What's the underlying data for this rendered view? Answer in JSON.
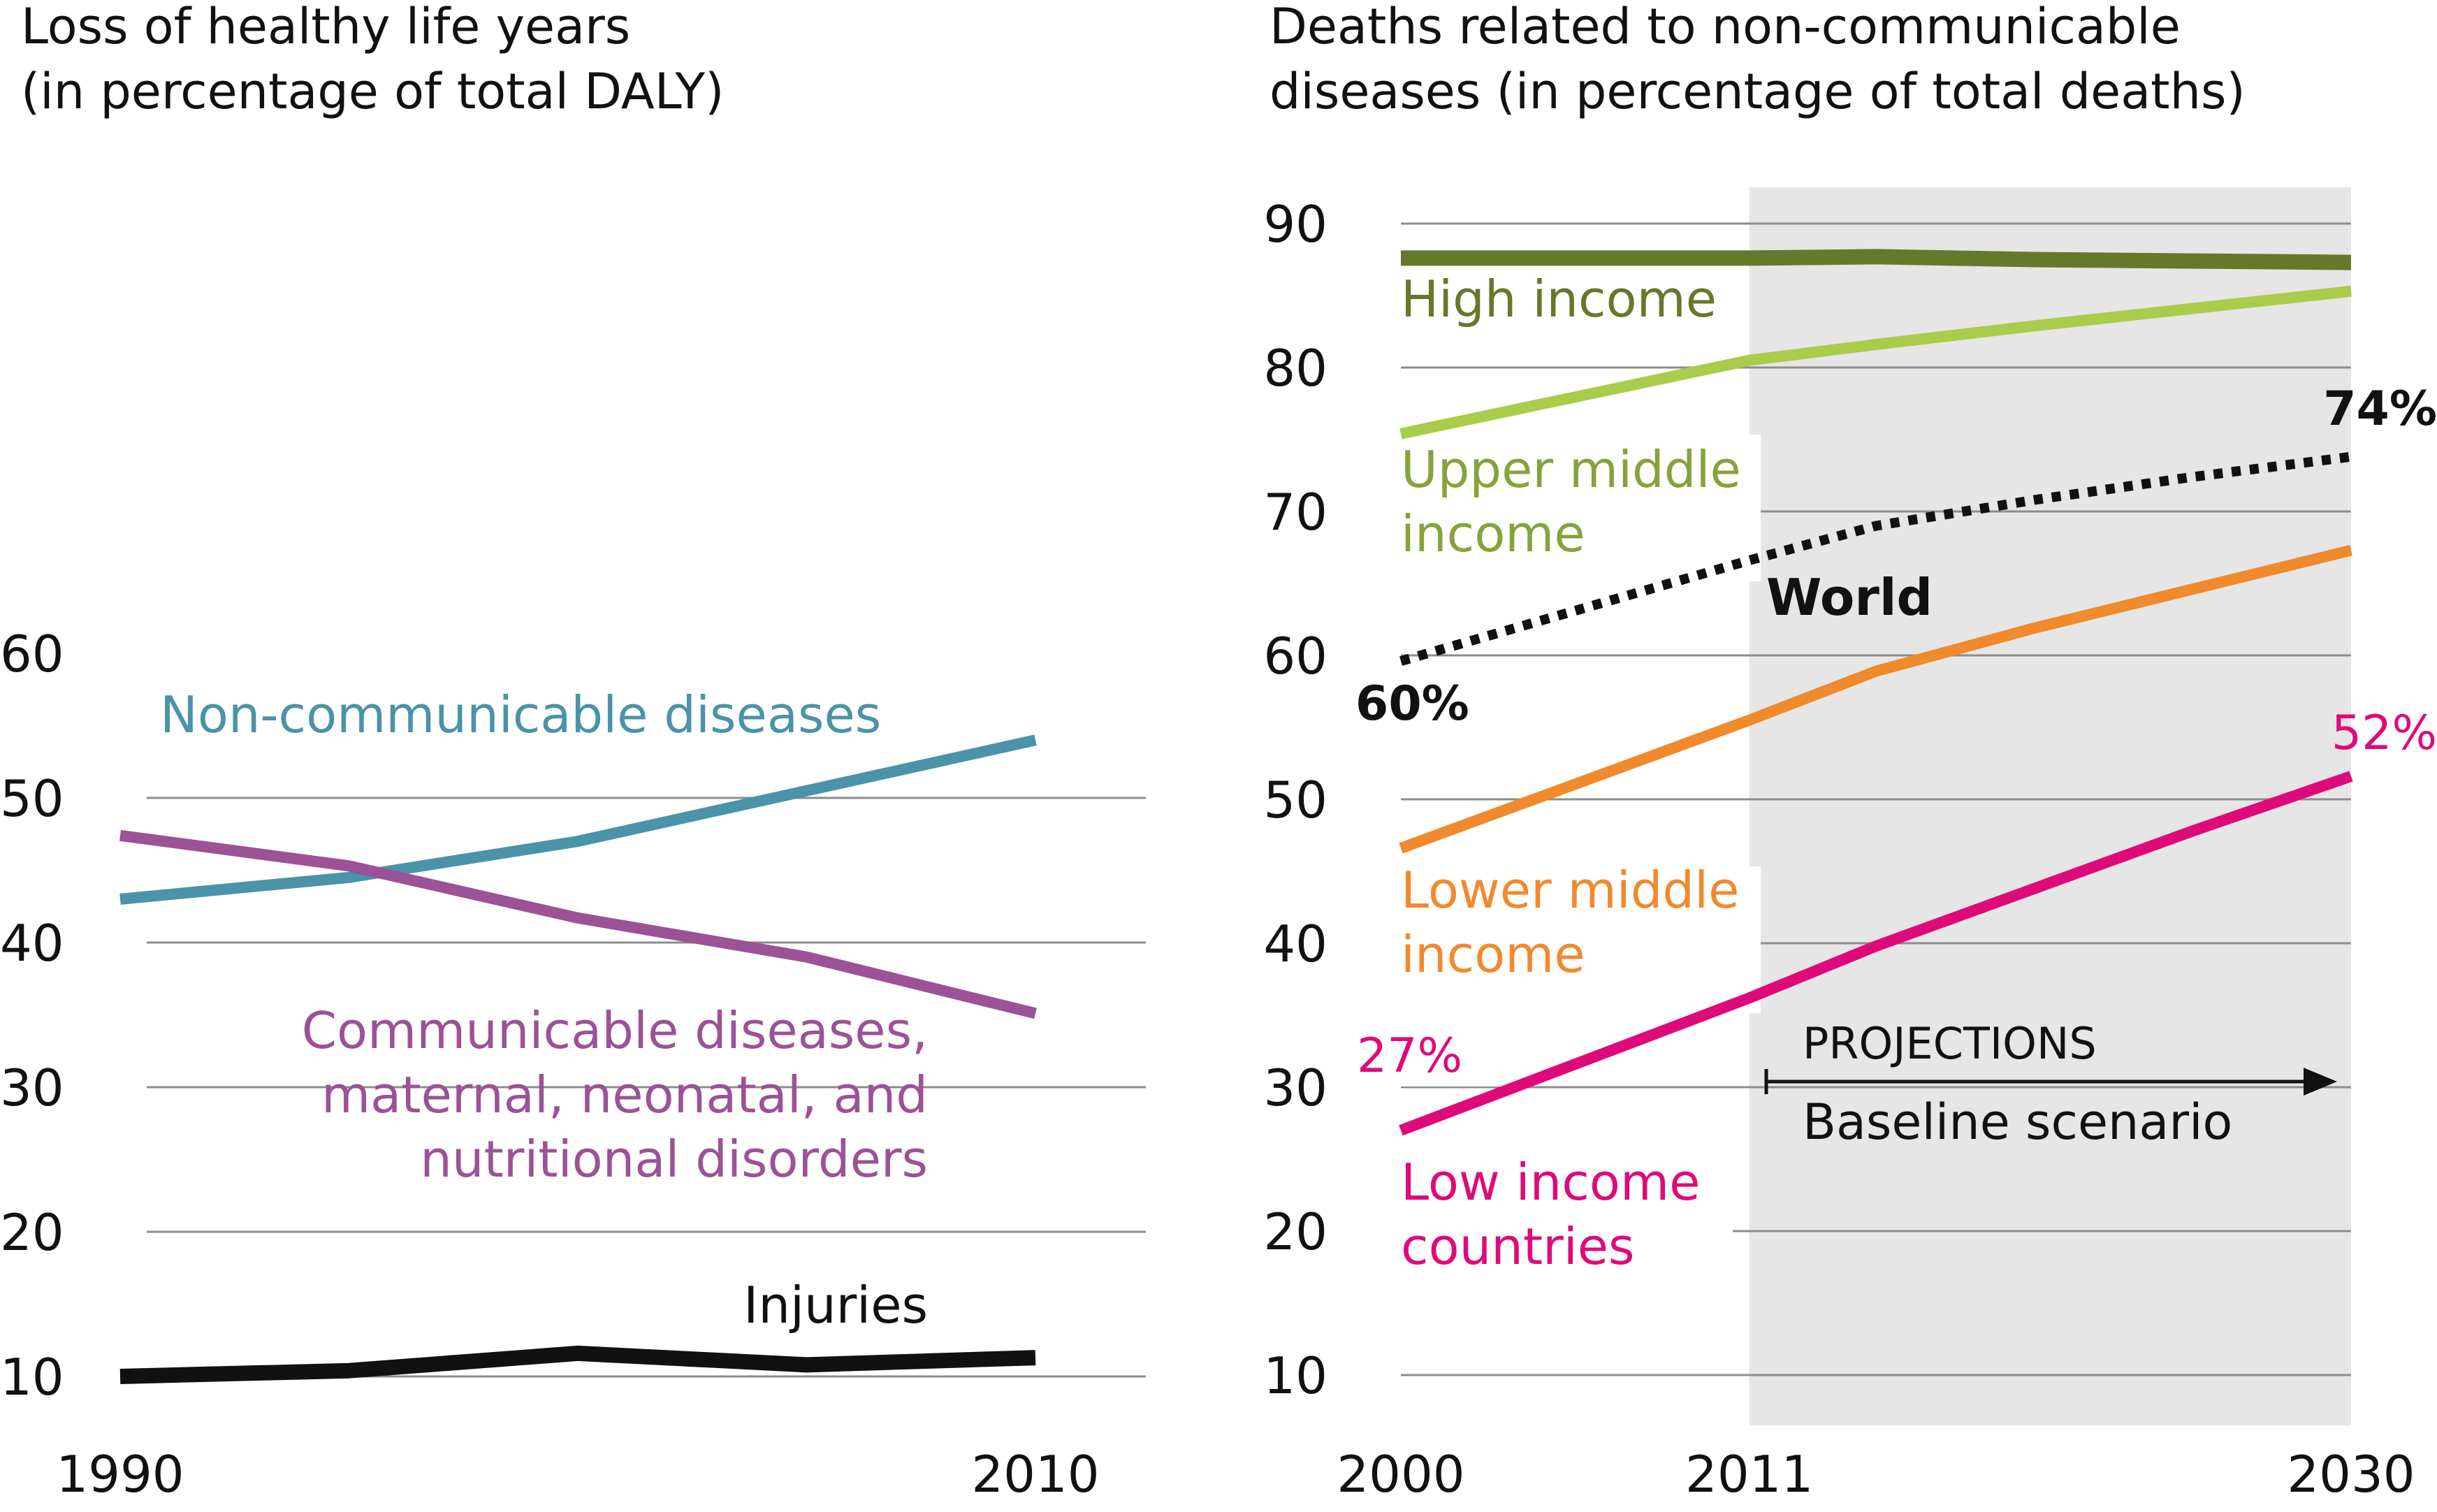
{
  "colors": {
    "ncd": "#4a93a8",
    "communicable": "#9b5296",
    "injuries": "#111111",
    "high_income": "#66782a",
    "upper_middle": "#a9cc4a",
    "upper_middle_label": "#86a33a",
    "world": "#111111",
    "lower_middle": "#f08a2d",
    "low_income": "#df0a79",
    "grid": "#8c8c8c",
    "projection_shade": "#e6e6e6",
    "axis_text": "#111111"
  },
  "chart_data": [
    {
      "type": "line",
      "title": "Loss of healthy life years\n(in percentage of total DALY)",
      "x_tick_labels": [
        "1990",
        "2010"
      ],
      "xlim": [
        1990,
        2010
      ],
      "ylim": [
        8,
        60
      ],
      "yticks": [
        10,
        20,
        30,
        40,
        50,
        60
      ],
      "grid": "horizontal",
      "series": [
        {
          "key": "ncd",
          "name": "Non-communicable diseases",
          "x": [
            1990,
            1995,
            2000,
            2005,
            2010
          ],
          "values": [
            43,
            44.5,
            47,
            50.5,
            54
          ]
        },
        {
          "key": "communicable",
          "name": "Communicable diseases,\nmaternal, neonatal, and\nnutritional disorders",
          "x": [
            1990,
            1995,
            2000,
            2005,
            2010
          ],
          "values": [
            47.4,
            45.3,
            41.7,
            39,
            35.1
          ]
        },
        {
          "key": "injuries",
          "name": "Injuries",
          "x": [
            1990,
            1995,
            2000,
            2005,
            2010
          ],
          "values": [
            10,
            10.4,
            11.6,
            10.8,
            11.3
          ]
        }
      ]
    },
    {
      "type": "line",
      "title": "Deaths related to non-communicable\ndiseases (in percentage of total deaths)",
      "x_tick_labels": [
        "2000",
        "2011",
        "2030"
      ],
      "xlim": [
        2000,
        2030
      ],
      "ylim": [
        8,
        92
      ],
      "yticks": [
        10,
        20,
        30,
        40,
        50,
        60,
        70,
        80,
        90
      ],
      "grid": "horizontal",
      "projection": {
        "from": 2011,
        "to": 2030,
        "label": "PROJECTIONS",
        "sublabel": "Baseline scenario"
      },
      "series": [
        {
          "key": "high_income",
          "name": "High income",
          "x": [
            2000,
            2011,
            2015,
            2020,
            2025,
            2030
          ],
          "values": [
            87.6,
            87.6,
            87.7,
            87.5,
            87.4,
            87.3
          ]
        },
        {
          "key": "upper_middle",
          "name": "Upper middle\nincome",
          "x": [
            2000,
            2011,
            2015,
            2020,
            2025,
            2030
          ],
          "values": [
            75.4,
            80.5,
            81.6,
            82.9,
            84.1,
            85.3
          ]
        },
        {
          "key": "world",
          "name": "World",
          "x": [
            2000,
            2011,
            2015,
            2020,
            2025,
            2030
          ],
          "values": [
            59.6,
            66.6,
            69,
            70.8,
            72.4,
            73.8
          ],
          "start_label": "60%",
          "end_label": "74%"
        },
        {
          "key": "lower_middle",
          "name": "Lower middle\nincome",
          "x": [
            2000,
            2011,
            2015,
            2020,
            2025,
            2030
          ],
          "values": [
            46.6,
            55.5,
            58.9,
            61.9,
            64.6,
            67.3
          ],
          "legend_x_pos": "left"
        },
        {
          "key": "low_income",
          "name": "Low income\ncountries",
          "x": [
            2000,
            2011,
            2015,
            2020,
            2025,
            2030
          ],
          "values": [
            27,
            36.2,
            39.8,
            43.8,
            47.8,
            51.6
          ],
          "start_label": "27%",
          "end_label": "52%"
        }
      ]
    }
  ]
}
